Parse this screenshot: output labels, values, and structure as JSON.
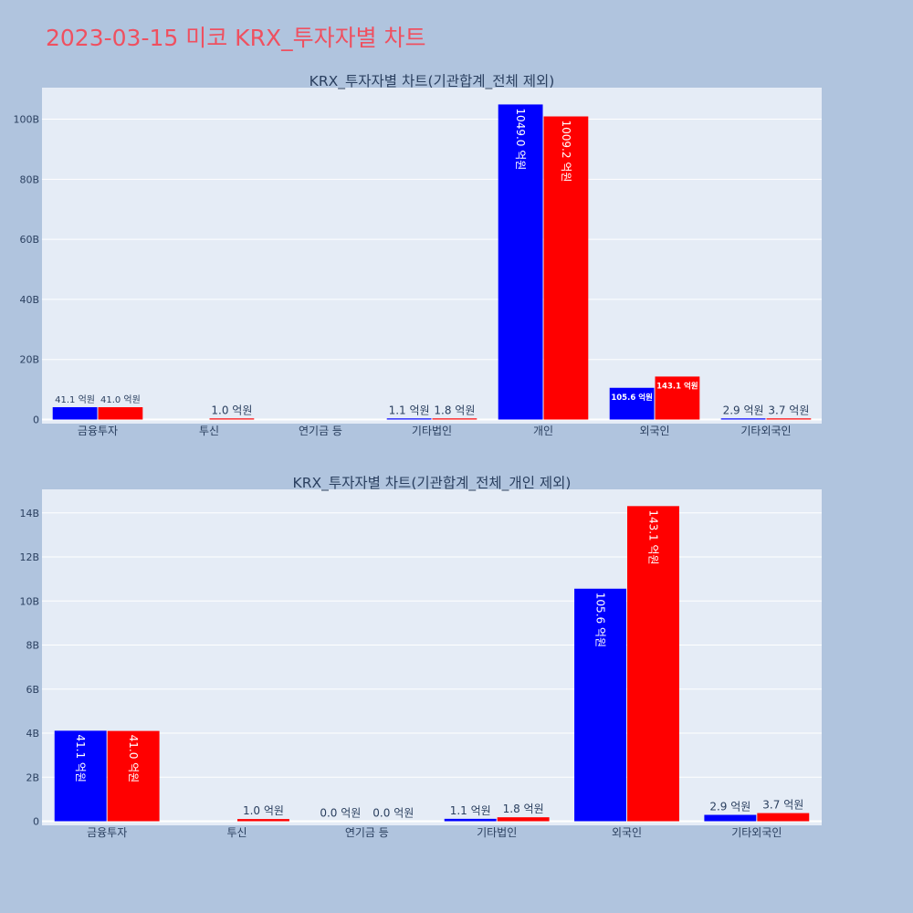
{
  "page": {
    "title": "2023-03-15 미코 KRX_투자자별 차트"
  },
  "colors": {
    "page_background": "#b0c4de",
    "plot_background": "#e5ecf6",
    "grid": "#ffffff",
    "title": "#ef5060",
    "series_1": "#0000ff",
    "series_2": "#ff0000",
    "text": "#2a3f5f"
  },
  "chart_data": [
    {
      "type": "bar",
      "title": "KRX_투자자별 차트(기관합계_전체 제외)",
      "categories": [
        "금융투자",
        "투신",
        "연기금 등",
        "기타법인",
        "개인",
        "외국인",
        "기타외국인"
      ],
      "series": [
        {
          "color": "#0000ff",
          "values": [
            4.11,
            0,
            0,
            0.11,
            104.9,
            10.56,
            0.29
          ],
          "labels": [
            "41.1 억원",
            "",
            "",
            "1.1 억원",
            "1049.0 억원",
            "105.6 억원",
            "2.9 억원"
          ]
        },
        {
          "color": "#ff0000",
          "values": [
            4.1,
            0.1,
            0,
            0.18,
            100.92,
            14.31,
            0.37
          ],
          "labels": [
            "41.0 억원",
            "1.0 억원",
            "",
            "1.8 억원",
            "1009.2 억원",
            "143.1 억원",
            "3.7 억원"
          ]
        }
      ],
      "yaxis": {
        "ticks": [
          0,
          20,
          40,
          60,
          80,
          100
        ],
        "tick_labels": [
          "0",
          "20B",
          "40B",
          "60B",
          "80B",
          "100B"
        ],
        "range": [
          0,
          110.5
        ]
      },
      "grid": true,
      "legend": "none"
    },
    {
      "type": "bar",
      "title": "KRX_투자자별 차트(기관합계_전체_개인 제외)",
      "categories": [
        "금융투자",
        "투신",
        "연기금 등",
        "기타법인",
        "외국인",
        "기타외국인"
      ],
      "series": [
        {
          "color": "#0000ff",
          "values": [
            4.11,
            0,
            0,
            0.11,
            10.56,
            0.29
          ],
          "labels": [
            "41.1 억원",
            "",
            "0.0 억원",
            "1.1 억원",
            "105.6 억원",
            "2.9 억원"
          ]
        },
        {
          "color": "#ff0000",
          "values": [
            4.1,
            0.1,
            0,
            0.18,
            14.31,
            0.37
          ],
          "labels": [
            "41.0 억원",
            "1.0 억원",
            "0.0 억원",
            "1.8 억원",
            "143.1 억원",
            "3.7 억원"
          ]
        }
      ],
      "yaxis": {
        "ticks": [
          0,
          2,
          4,
          6,
          8,
          10,
          12,
          14
        ],
        "tick_labels": [
          "0",
          "2B",
          "4B",
          "6B",
          "8B",
          "10B",
          "12B",
          "14B"
        ],
        "range": [
          0,
          15.07
        ]
      },
      "grid": true,
      "legend": "none"
    }
  ]
}
